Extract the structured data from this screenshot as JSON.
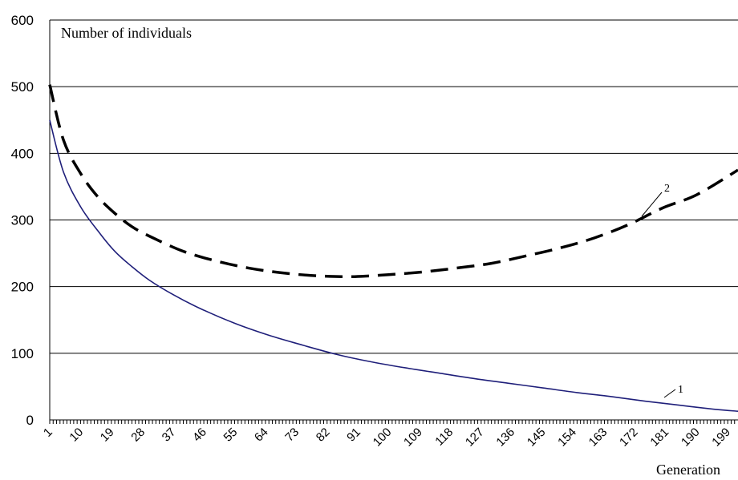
{
  "chart_data": {
    "type": "line",
    "title": "",
    "ylabel": "Number of individuals",
    "xlabel": "Generation",
    "ylim": [
      0,
      600
    ],
    "xlim": [
      1,
      202
    ],
    "grid": true,
    "y_ticks": [
      0,
      100,
      200,
      300,
      400,
      500,
      600
    ],
    "x_tick_labels": [
      "1",
      "10",
      "19",
      "28",
      "37",
      "46",
      "55",
      "64",
      "73",
      "82",
      "91",
      "100",
      "109",
      "118",
      "127",
      "136",
      "145",
      "154",
      "163",
      "172",
      "181",
      "190",
      "199"
    ],
    "series": [
      {
        "name": "1",
        "style": "solid",
        "color": "#1f1f7a",
        "x": [
          1,
          5,
          10,
          15,
          20,
          25,
          30,
          37,
          45,
          55,
          65,
          75,
          85,
          95,
          105,
          115,
          125,
          135,
          145,
          155,
          165,
          175,
          185,
          195,
          202
        ],
        "y": [
          450,
          372,
          320,
          284,
          253,
          230,
          210,
          188,
          167,
          145,
          127,
          112,
          98,
          87,
          78,
          70,
          62,
          55,
          48,
          41,
          35,
          28,
          22,
          16,
          13
        ]
      },
      {
        "name": "2",
        "style": "dashed",
        "color": "#000000",
        "x": [
          1,
          5,
          10,
          15,
          20,
          25,
          30,
          40,
          50,
          60,
          70,
          80,
          90,
          100,
          110,
          120,
          130,
          140,
          150,
          160,
          170,
          180,
          190,
          202
        ],
        "y": [
          503,
          420,
          370,
          335,
          310,
          290,
          276,
          253,
          238,
          227,
          220,
          216,
          215,
          218,
          222,
          228,
          235,
          246,
          258,
          273,
          293,
          318,
          338,
          375
        ]
      }
    ]
  }
}
